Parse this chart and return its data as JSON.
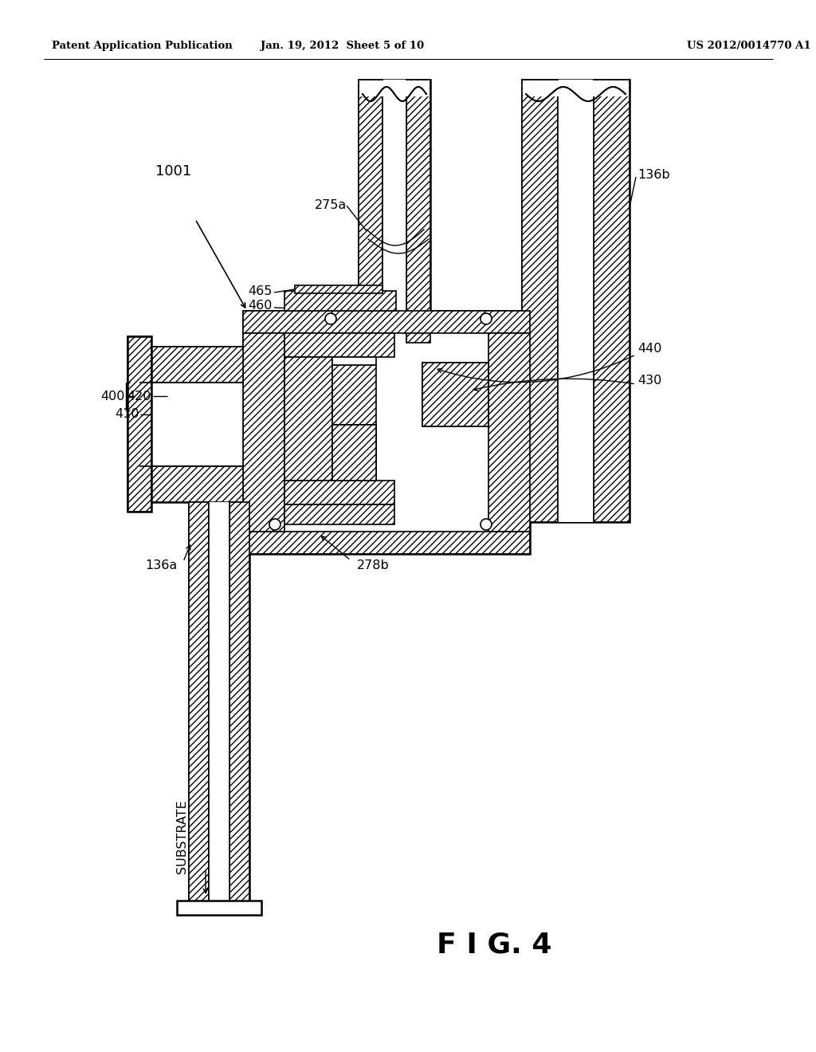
{
  "bg_color": "#ffffff",
  "header_left": "Patent Application Publication",
  "header_center": "Jan. 19, 2012  Sheet 5 of 10",
  "header_right": "US 2012/0014770 A1",
  "figure_label": "F I G. 4",
  "line_color": "#000000"
}
